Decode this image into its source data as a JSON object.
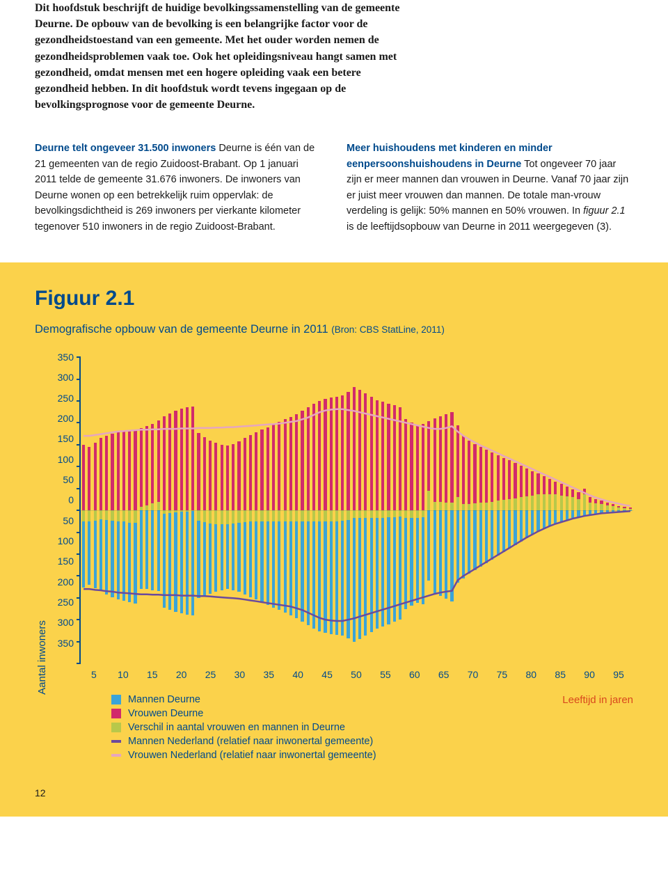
{
  "intro": "Dit hoofdstuk beschrijft de huidige bevolkingssamenstelling van de gemeente Deurne. De opbouw van de bevolking is een belangrijke factor voor de gezondheidstoestand van een gemeente. Met het ouder worden nemen de gezondheidsproblemen vaak toe. Ook het opleidingsniveau hangt samen met gezondheid, omdat mensen met een hogere opleiding vaak een betere gezondheid hebben. In dit hoofdstuk wordt tevens ingegaan op de bevolkingsprognose voor de gemeente Deurne.",
  "col_left": {
    "heading": "Deurne telt ongeveer 31.500 inwoners",
    "body": "Deurne is één van de 21 gemeenten van de regio Zuidoost-Brabant. Op 1 januari 2011 telde de gemeente 31.676 inwoners. De inwoners van Deurne wonen op een betrekkelijk ruim oppervlak: de bevolkingsdichtheid is 269 inwoners per vierkante kilometer tegenover 510 inwoners in de regio Zuidoost-Brabant."
  },
  "col_right": {
    "heading": "Meer huishoudens met kinderen en minder eenpersoonshuishoudens in Deurne",
    "body_pre": "Tot ongeveer 70 jaar zijn er meer mannen dan vrouwen in Deurne. Vanaf 70 jaar zijn er juist meer vrouwen dan mannen. De totale man-vrouw verdeling is gelijk: 50% mannen en 50% vrouwen. In ",
    "body_em": "figuur 2.1",
    "body_post": " is de leeftijdsopbouw van Deurne in 2011 weergegeven (3)."
  },
  "figure": {
    "title": "Figuur 2.1",
    "subtitle": "Demografische opbouw van de gemeente Deurne in 2011 ",
    "source": "(Bron: CBS StatLine, 2011)",
    "ylabel": "Aantal inwoners",
    "xlabel": "Leeftijd in jaren",
    "background_color": "#fbd24b",
    "axis_color": "#004a8c",
    "xlabel_color": "#d9481d",
    "ylim": [
      -350,
      350
    ],
    "y_ticks_pos": [
      350,
      300,
      250,
      200,
      150,
      100,
      50,
      0
    ],
    "y_ticks_neg": [
      50,
      100,
      150,
      200,
      250,
      300,
      350
    ],
    "x_ticks": [
      5,
      10,
      15,
      20,
      25,
      30,
      35,
      40,
      45,
      50,
      55,
      60,
      65,
      70,
      75,
      80,
      85,
      90,
      95
    ],
    "x_range": [
      0,
      96
    ],
    "legend": [
      {
        "type": "box",
        "color": "#3aa4d8",
        "label": "Mannen Deurne"
      },
      {
        "type": "box",
        "color": "#d12a6b",
        "label": "Vrouwen Deurne"
      },
      {
        "type": "box",
        "color": "#b8c84a",
        "label": "Verschil in aantal vrouwen en mannen in Deurne"
      },
      {
        "type": "line",
        "color": "#6b4a9c",
        "label": "Mannen Nederland (relatief naar inwonertal gemeente)"
      },
      {
        "type": "line",
        "color": "#e6a6bf",
        "label": "Vrouwen Nederland (relatief naar inwonertal gemeente)"
      }
    ],
    "series": {
      "vrouwen_deurne": {
        "color": "#d12a6b",
        "values": [
          150,
          145,
          155,
          165,
          170,
          175,
          178,
          180,
          182,
          185,
          188,
          192,
          198,
          205,
          215,
          222,
          228,
          232,
          235,
          238,
          176,
          168,
          160,
          155,
          150,
          148,
          152,
          158,
          165,
          172,
          178,
          184,
          190,
          196,
          202,
          208,
          214,
          220,
          228,
          236,
          244,
          250,
          254,
          258,
          260,
          262,
          270,
          282,
          276,
          268,
          260,
          252,
          248,
          244,
          240,
          236,
          208,
          200,
          195,
          198,
          204,
          210,
          215,
          220,
          225,
          195,
          170,
          160,
          152,
          145,
          138,
          132,
          126,
          120,
          114,
          108,
          102,
          96,
          90,
          84,
          78,
          72,
          66,
          60,
          54,
          48,
          42,
          50,
          30,
          26,
          22,
          18,
          14,
          10,
          8,
          6
        ]
      },
      "mannen_deurne": {
        "color": "#3aa4d8",
        "values": [
          176,
          170,
          178,
          185,
          192,
          198,
          203,
          206,
          210,
          213,
          180,
          180,
          182,
          185,
          222,
          228,
          232,
          235,
          238,
          240,
          200,
          195,
          190,
          186,
          182,
          180,
          182,
          186,
          192,
          198,
          204,
          210,
          216,
          222,
          228,
          234,
          240,
          246,
          254,
          262,
          270,
          276,
          280,
          283,
          285,
          286,
          292,
          300,
          294,
          286,
          278,
          270,
          265,
          260,
          255,
          250,
          226,
          218,
          212,
          214,
          160,
          190,
          196,
          202,
          208,
          165,
          155,
          145,
          136,
          128,
          120,
          112,
          104,
          96,
          88,
          80,
          72,
          64,
          56,
          48,
          42,
          36,
          30,
          26,
          22,
          18,
          16,
          14,
          12,
          10,
          8,
          6,
          5,
          4,
          3,
          2
        ]
      },
      "verschil": {
        "color": "#b8c84a"
      },
      "vrouwen_nl": {
        "color": "#e6a6bf",
        "values": [
          170,
          170,
          172,
          174,
          176,
          178,
          180,
          181,
          182,
          183,
          184,
          184,
          185,
          185,
          186,
          186,
          186,
          187,
          187,
          187,
          188,
          188,
          188,
          189,
          189,
          190,
          190,
          191,
          192,
          193,
          194,
          195,
          196,
          197,
          198,
          200,
          202,
          204,
          208,
          212,
          218,
          224,
          228,
          230,
          231,
          231,
          229,
          227,
          224,
          221,
          218,
          215,
          212,
          209,
          206,
          203,
          200,
          197,
          194,
          191,
          188,
          186,
          186,
          188,
          192,
          180,
          170,
          162,
          155,
          148,
          142,
          136,
          130,
          124,
          118,
          112,
          106,
          100,
          94,
          88,
          82,
          76,
          70,
          64,
          58,
          52,
          46,
          40,
          34,
          29,
          25,
          21,
          18,
          15,
          12,
          10
        ]
      },
      "mannen_nl": {
        "color": "#6b4a9c",
        "values": [
          180,
          180,
          182,
          183,
          185,
          186,
          188,
          189,
          190,
          191,
          192,
          192,
          193,
          193,
          194,
          194,
          194,
          195,
          195,
          195,
          196,
          196,
          197,
          198,
          199,
          200,
          201,
          202,
          204,
          206,
          208,
          210,
          212,
          214,
          216,
          218,
          220,
          224,
          228,
          234,
          240,
          246,
          250,
          252,
          253,
          253,
          250,
          247,
          243,
          239,
          235,
          231,
          227,
          223,
          219,
          215,
          211,
          207,
          203,
          199,
          195,
          191,
          188,
          186,
          184,
          160,
          150,
          142,
          134,
          126,
          118,
          110,
          102,
          94,
          86,
          78,
          70,
          62,
          55,
          48,
          42,
          36,
          31,
          27,
          23,
          19,
          16,
          13,
          11,
          9,
          7,
          6,
          5,
          4,
          3,
          2
        ]
      }
    }
  },
  "page_number": "12"
}
